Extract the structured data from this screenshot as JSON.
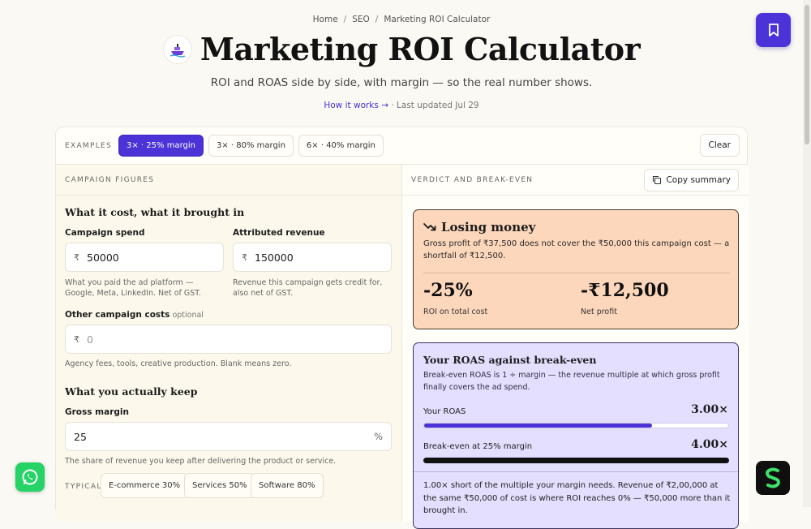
{
  "breadcrumb": {
    "home": "Home",
    "seo": "SEO",
    "current": "Marketing ROI Calculator",
    "sep": "/"
  },
  "header": {
    "title": "Marketing ROI Calculator",
    "subtitle": "ROI and ROAS side by side, with margin — so the real number shows.",
    "how_it_works": "How it works",
    "arrow": "→",
    "last_updated": "· Last updated Jul 29"
  },
  "examples": {
    "label": "EXAMPLES",
    "chips": [
      "3× · 25% margin",
      "3× · 80% margin",
      "6× · 40% margin"
    ],
    "clear": "Clear"
  },
  "left": {
    "heading": "CAMPAIGN FIGURES",
    "section1": "What it cost, what it brought in",
    "spend": {
      "label": "Campaign spend",
      "currency": "₹",
      "value": "50000",
      "help": "What you paid the ad platform — Google, Meta, LinkedIn. Net of GST."
    },
    "revenue": {
      "label": "Attributed revenue",
      "currency": "₹",
      "value": "150000",
      "help": "Revenue this campaign gets credit for, also net of GST."
    },
    "other": {
      "label": "Other campaign costs",
      "optional": "optional",
      "currency": "₹",
      "placeholder": "0",
      "help": "Agency fees, tools, creative production. Blank means zero."
    },
    "section2": "What you actually keep",
    "margin": {
      "label": "Gross margin",
      "value": "25",
      "unit": "%",
      "help": "The share of revenue you keep after delivering the product or service."
    },
    "typical": {
      "label": "TYPICAL",
      "chips": [
        "E-commerce 30%",
        "Services 50%",
        "Software 80%"
      ]
    }
  },
  "right": {
    "heading": "VERDICT AND BREAK-EVEN",
    "copy": "Copy summary",
    "verdict": {
      "title": "Losing money",
      "text": "Gross profit of ₹37,500 does not cover the ₹50,000 this campaign cost — a shortfall of ₹12,500.",
      "roi_value": "-25%",
      "roi_label": "ROI on total cost",
      "profit_value": "-₹12,500",
      "profit_label": "Net profit"
    },
    "roas": {
      "title": "Your ROAS against break-even",
      "text": "Break-even ROAS is 1 ÷ margin — the revenue multiple at which gross profit finally covers the ad spend.",
      "your_label": "Your ROAS",
      "your_value": "3.00×",
      "your_fraction": 0.75,
      "be_label": "Break-even at 25% margin",
      "be_value": "4.00×",
      "be_fraction": 1.0,
      "note": "1.00× short of the multiple your margin needs. Revenue of ₹2,00,000 at the same ₹50,000 of cost is where ROI reaches 0% — ₹50,000 more than it brought in."
    }
  },
  "colors": {
    "accent": "#4c33d8",
    "verdict_bg": "#fdd7bb",
    "roas_bg": "#e4deff",
    "whatsapp": "#25d366"
  }
}
